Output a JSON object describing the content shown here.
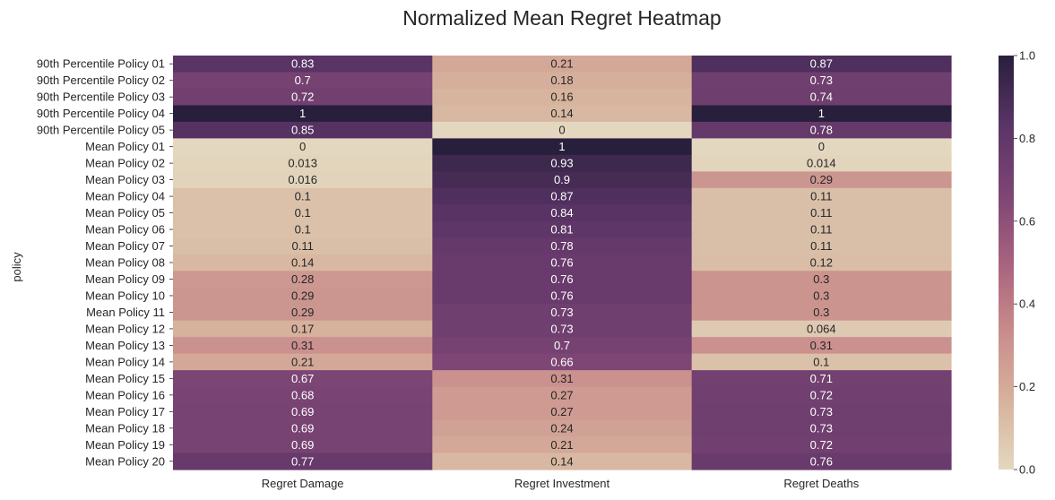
{
  "chart_data": {
    "type": "heatmap",
    "title": "Normalized Mean Regret Heatmap",
    "ylabel": "policy",
    "xlabel": "",
    "columns": [
      "Regret Damage",
      "Regret Investment",
      "Regret Deaths"
    ],
    "rows": [
      "90th Percentile Policy 01",
      "90th Percentile Policy 02",
      "90th Percentile Policy 03",
      "90th Percentile Policy 04",
      "90th Percentile Policy 05",
      "Mean Policy 01",
      "Mean Policy 02",
      "Mean Policy 03",
      "Mean Policy 04",
      "Mean Policy 05",
      "Mean Policy 06",
      "Mean Policy 07",
      "Mean Policy 08",
      "Mean Policy 09",
      "Mean Policy 10",
      "Mean Policy 11",
      "Mean Policy 12",
      "Mean Policy 13",
      "Mean Policy 14",
      "Mean Policy 15",
      "Mean Policy 16",
      "Mean Policy 17",
      "Mean Policy 18",
      "Mean Policy 19",
      "Mean Policy 20"
    ],
    "values": [
      [
        0.83,
        0.21,
        0.87
      ],
      [
        0.7,
        0.18,
        0.73
      ],
      [
        0.72,
        0.16,
        0.74
      ],
      [
        1,
        0.14,
        1
      ],
      [
        0.85,
        0,
        0.78
      ],
      [
        0,
        1,
        0
      ],
      [
        0.013,
        0.93,
        0.014
      ],
      [
        0.016,
        0.9,
        0.29
      ],
      [
        0.1,
        0.87,
        0.11
      ],
      [
        0.1,
        0.84,
        0.11
      ],
      [
        0.1,
        0.81,
        0.11
      ],
      [
        0.11,
        0.78,
        0.11
      ],
      [
        0.14,
        0.76,
        0.12
      ],
      [
        0.28,
        0.76,
        0.3
      ],
      [
        0.29,
        0.76,
        0.3
      ],
      [
        0.29,
        0.73,
        0.3
      ],
      [
        0.17,
        0.73,
        0.064
      ],
      [
        0.31,
        0.7,
        0.31
      ],
      [
        0.21,
        0.66,
        0.1
      ],
      [
        0.67,
        0.31,
        0.71
      ],
      [
        0.68,
        0.27,
        0.72
      ],
      [
        0.69,
        0.27,
        0.73
      ],
      [
        0.69,
        0.24,
        0.73
      ],
      [
        0.69,
        0.21,
        0.72
      ],
      [
        0.77,
        0.14,
        0.76
      ]
    ],
    "value_labels": [
      [
        "0.83",
        "0.21",
        "0.87"
      ],
      [
        "0.7",
        "0.18",
        "0.73"
      ],
      [
        "0.72",
        "0.16",
        "0.74"
      ],
      [
        "1",
        "0.14",
        "1"
      ],
      [
        "0.85",
        "0",
        "0.78"
      ],
      [
        "0",
        "1",
        "0"
      ],
      [
        "0.013",
        "0.93",
        "0.014"
      ],
      [
        "0.016",
        "0.9",
        "0.29"
      ],
      [
        "0.1",
        "0.87",
        "0.11"
      ],
      [
        "0.1",
        "0.84",
        "0.11"
      ],
      [
        "0.1",
        "0.81",
        "0.11"
      ],
      [
        "0.11",
        "0.78",
        "0.11"
      ],
      [
        "0.14",
        "0.76",
        "0.12"
      ],
      [
        "0.28",
        "0.76",
        "0.3"
      ],
      [
        "0.29",
        "0.76",
        "0.3"
      ],
      [
        "0.29",
        "0.73",
        "0.3"
      ],
      [
        "0.17",
        "0.73",
        "0.064"
      ],
      [
        "0.31",
        "0.7",
        "0.31"
      ],
      [
        "0.21",
        "0.66",
        "0.1"
      ],
      [
        "0.67",
        "0.31",
        "0.71"
      ],
      [
        "0.68",
        "0.27",
        "0.72"
      ],
      [
        "0.69",
        "0.27",
        "0.73"
      ],
      [
        "0.69",
        "0.24",
        "0.73"
      ],
      [
        "0.69",
        "0.21",
        "0.72"
      ],
      [
        "0.77",
        "0.14",
        "0.76"
      ]
    ],
    "colorbar": {
      "range": [
        0,
        1
      ],
      "ticks": [
        "0.0",
        "0.2",
        "0.4",
        "0.6",
        "0.8",
        "1.0"
      ]
    },
    "colormap_stops": [
      "#e3d8bf",
      "#d6b29c",
      "#c98c8c",
      "#a8627d",
      "#7c4574",
      "#5a3466",
      "#281f3c"
    ]
  }
}
